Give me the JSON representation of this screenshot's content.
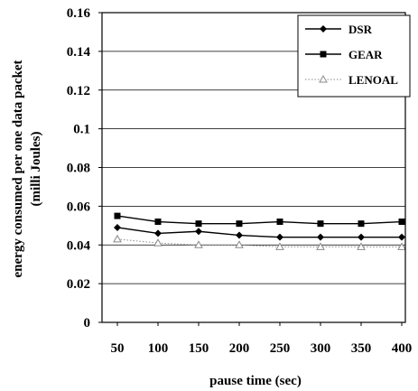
{
  "chart_data": {
    "type": "line",
    "title": "",
    "xlabel": "pause time (sec)",
    "ylabel_line1": "energy consumed per one data packet",
    "ylabel_line2": "(milli Joules)",
    "categories": [
      "50",
      "100",
      "150",
      "200",
      "250",
      "300",
      "350",
      "400"
    ],
    "x": [
      50,
      100,
      150,
      200,
      250,
      300,
      350,
      400
    ],
    "ylim": [
      0,
      0.16
    ],
    "yticks": [
      0,
      0.02,
      0.04,
      0.06,
      0.08,
      0.1,
      0.12,
      0.14,
      0.16
    ],
    "ytick_labels": [
      "0",
      "0.02",
      "0.04",
      "0.06",
      "0.08",
      "0.1",
      "0.12",
      "0.14",
      "0.16"
    ],
    "grid": "horizontal",
    "legend_position": "top-right",
    "series": [
      {
        "name": "DSR",
        "marker": "diamond",
        "color": "#000000",
        "line_style": "solid",
        "values": [
          0.049,
          0.046,
          0.047,
          0.045,
          0.044,
          0.044,
          0.044,
          0.044
        ]
      },
      {
        "name": "GEAR",
        "marker": "square",
        "color": "#000000",
        "line_style": "solid",
        "values": [
          0.055,
          0.052,
          0.051,
          0.051,
          0.052,
          0.051,
          0.051,
          0.052
        ]
      },
      {
        "name": "LENOAL",
        "marker": "triangle",
        "color": "#8a8a8a",
        "line_style": "dotted",
        "values": [
          0.043,
          0.041,
          0.04,
          0.04,
          0.039,
          0.039,
          0.039,
          0.039
        ]
      }
    ]
  }
}
